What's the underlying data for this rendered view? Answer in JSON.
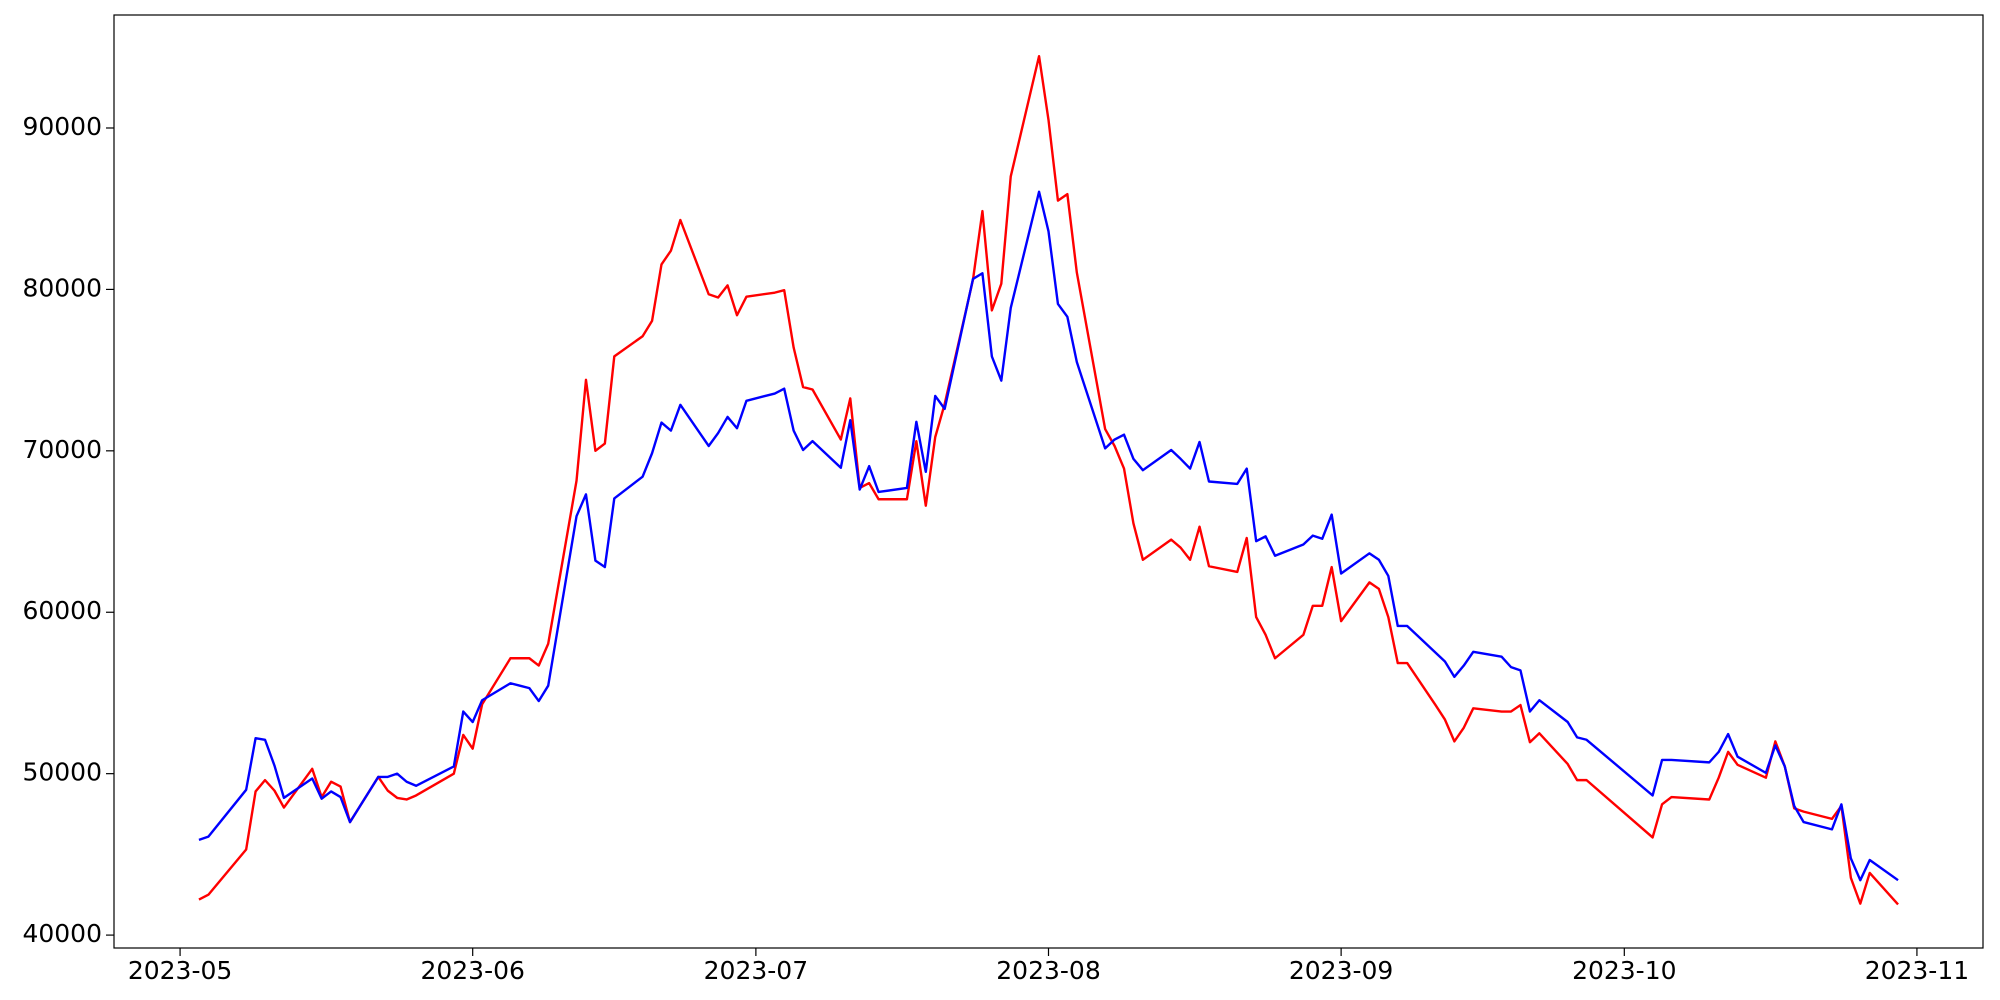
{
  "chart_data": {
    "type": "line",
    "x": [
      "2023-05-03",
      "2023-05-04",
      "2023-05-08",
      "2023-05-09",
      "2023-05-10",
      "2023-05-11",
      "2023-05-12",
      "2023-05-15",
      "2023-05-16",
      "2023-05-17",
      "2023-05-18",
      "2023-05-19",
      "2023-05-22",
      "2023-05-23",
      "2023-05-24",
      "2023-05-25",
      "2023-05-26",
      "2023-05-30",
      "2023-05-31",
      "2023-06-01",
      "2023-06-02",
      "2023-06-05",
      "2023-06-06",
      "2023-06-07",
      "2023-06-08",
      "2023-06-09",
      "2023-06-12",
      "2023-06-13",
      "2023-06-14",
      "2023-06-15",
      "2023-06-16",
      "2023-06-19",
      "2023-06-20",
      "2023-06-21",
      "2023-06-22",
      "2023-06-23",
      "2023-06-26",
      "2023-06-27",
      "2023-06-28",
      "2023-06-29",
      "2023-06-30",
      "2023-07-03",
      "2023-07-04",
      "2023-07-05",
      "2023-07-06",
      "2023-07-07",
      "2023-07-10",
      "2023-07-11",
      "2023-07-12",
      "2023-07-13",
      "2023-07-14",
      "2023-07-17",
      "2023-07-18",
      "2023-07-19",
      "2023-07-20",
      "2023-07-21",
      "2023-07-24",
      "2023-07-25",
      "2023-07-26",
      "2023-07-27",
      "2023-07-28",
      "2023-07-31",
      "2023-08-01",
      "2023-08-02",
      "2023-08-03",
      "2023-08-04",
      "2023-08-07",
      "2023-08-08",
      "2023-08-09",
      "2023-08-10",
      "2023-08-11",
      "2023-08-14",
      "2023-08-15",
      "2023-08-16",
      "2023-08-17",
      "2023-08-18",
      "2023-08-21",
      "2023-08-22",
      "2023-08-23",
      "2023-08-24",
      "2023-08-25",
      "2023-08-28",
      "2023-08-29",
      "2023-08-30",
      "2023-08-31",
      "2023-09-01",
      "2023-09-04",
      "2023-09-05",
      "2023-09-06",
      "2023-09-07",
      "2023-09-08",
      "2023-09-11",
      "2023-09-12",
      "2023-09-13",
      "2023-09-14",
      "2023-09-15",
      "2023-09-18",
      "2023-09-19",
      "2023-09-20",
      "2023-09-21",
      "2023-09-22",
      "2023-09-25",
      "2023-09-26",
      "2023-09-27",
      "2023-10-04",
      "2023-10-05",
      "2023-10-06",
      "2023-10-10",
      "2023-10-11",
      "2023-10-12",
      "2023-10-13",
      "2023-10-16",
      "2023-10-17",
      "2023-10-18",
      "2023-10-19",
      "2023-10-20",
      "2023-10-23",
      "2023-10-24",
      "2023-10-25",
      "2023-10-26",
      "2023-10-27",
      "2023-10-30"
    ],
    "series": [
      {
        "color": "#ff0000",
        "values": [
          42200,
          42500,
          45300,
          48900,
          49600,
          48950,
          47900,
          50300,
          48550,
          49500,
          49200,
          47000,
          49800,
          48950,
          48500,
          48400,
          48650,
          50000,
          52400,
          51550,
          54300,
          57150,
          57150,
          57150,
          56700,
          58050,
          68150,
          74400,
          70000,
          70450,
          75850,
          77100,
          78050,
          81550,
          82400,
          84300,
          79700,
          79500,
          80250,
          78400,
          79550,
          79800,
          79950,
          76400,
          73950,
          73800,
          70700,
          73250,
          67700,
          68000,
          67000,
          67000,
          70600,
          66600,
          70850,
          72900,
          80600,
          84850,
          78700,
          80350,
          87000,
          94450,
          90500,
          85500,
          85900,
          81050,
          71350,
          70300,
          68900,
          65500,
          63250,
          64500,
          64000,
          63250,
          65300,
          62850,
          62500,
          64600,
          59700,
          58600,
          57150,
          58600,
          60400,
          60400,
          62800,
          59450,
          61850,
          61450,
          59700,
          56850,
          56850,
          54250,
          53350,
          52000,
          52850,
          54050,
          53850,
          53850,
          54250,
          51950,
          52500,
          50600,
          49600,
          49600,
          46050,
          48100,
          48550,
          48400,
          49750,
          51350,
          50550,
          49750,
          52000,
          50450,
          47850,
          47650,
          47200,
          48000,
          43550,
          41950,
          43850,
          41900
        ]
      },
      {
        "color": "#0000ff",
        "values": [
          45900,
          46100,
          49000,
          52200,
          52100,
          50500,
          48500,
          49700,
          48450,
          48900,
          48550,
          47000,
          49800,
          49800,
          50000,
          49500,
          49250,
          50450,
          53850,
          53200,
          54550,
          55600,
          55450,
          55300,
          54500,
          55450,
          65950,
          67300,
          63200,
          62800,
          67050,
          68400,
          69850,
          71750,
          71250,
          72850,
          70300,
          71100,
          72100,
          71400,
          73100,
          73550,
          73850,
          71250,
          70050,
          70600,
          68950,
          71900,
          67600,
          69050,
          67450,
          67700,
          71800,
          68700,
          73400,
          72600,
          80650,
          81000,
          75850,
          74350,
          78850,
          86050,
          83600,
          79100,
          78300,
          75500,
          70150,
          70700,
          71000,
          69500,
          68800,
          70050,
          69500,
          68900,
          70550,
          68100,
          67950,
          68900,
          64400,
          64700,
          63500,
          64200,
          64750,
          64550,
          66050,
          62400,
          63650,
          63250,
          62250,
          59150,
          59150,
          57500,
          56950,
          56000,
          56700,
          57550,
          57250,
          56600,
          56400,
          53850,
          54550,
          53200,
          52250,
          52100,
          48650,
          50850,
          50850,
          50700,
          51350,
          52450,
          51050,
          50050,
          51750,
          50450,
          48000,
          47000,
          46550,
          48100,
          44750,
          43400,
          44650,
          43400
        ]
      }
    ],
    "xlim": [
      "2023-04-24",
      "2023-11-08"
    ],
    "xticks": [
      "2023-05",
      "2023-06",
      "2023-07",
      "2023-08",
      "2023-09",
      "2023-10",
      "2023-11"
    ],
    "ylim": [
      39200,
      97000
    ],
    "yticks": [
      40000,
      50000,
      60000,
      70000,
      80000,
      90000
    ],
    "grid": false
  }
}
